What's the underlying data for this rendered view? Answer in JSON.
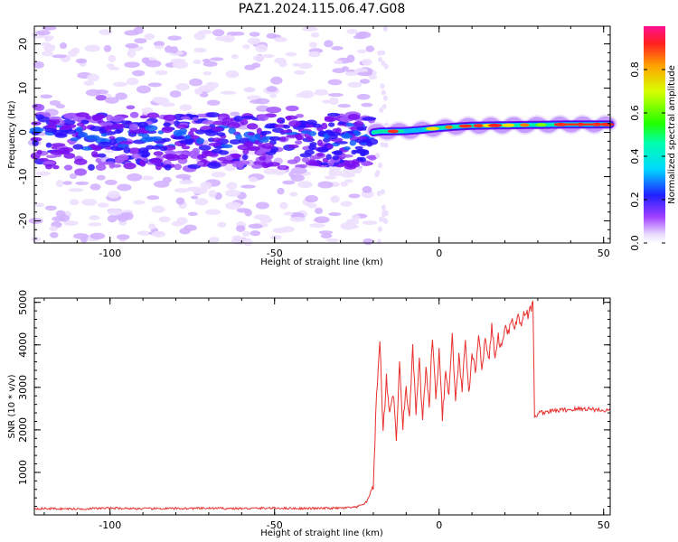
{
  "figure_title": "PAZ1.2024.115.06.47.G08",
  "chart_data": [
    {
      "type": "heatmap",
      "xlabel": "Height of straight line (km)",
      "ylabel": "Frequency (Hz)",
      "xlim": [
        -123,
        52
      ],
      "ylim": [
        -25,
        24
      ],
      "xticks": [
        -100,
        -50,
        0,
        50
      ],
      "yticks": [
        -20,
        -10,
        0,
        10,
        20
      ],
      "colorbar": {
        "label": "Normalized spectral amplitude",
        "range": [
          0.0,
          1.0
        ],
        "ticks": [
          0.0,
          0.2,
          0.4,
          0.6,
          0.8
        ],
        "tick_labels": [
          "0.0",
          "0.2",
          "0.4",
          "0.6",
          "0.8"
        ],
        "colormap": "hsv (white-violet-blue-cyan-green-yellow-red)"
      },
      "description_regions": [
        {
          "x_range": [
            -123,
            -20
          ],
          "pattern": "scattered speckle, strongest near 0 Hz (band -8 to 4 Hz), weak across -25 to 24 Hz"
        },
        {
          "x_range": [
            -20,
            52
          ],
          "pattern": "narrow coherent line rising from 0 Hz to ~1.8 Hz, amplitudes up to ~1.0"
        }
      ],
      "ridge": {
        "x": [
          -123,
          -20,
          -18,
          -10,
          -5,
          0,
          5,
          10,
          20,
          30,
          40,
          52
        ],
        "y": [
          0,
          0,
          0.2,
          0.3,
          0.6,
          1.0,
          1.3,
          1.5,
          1.6,
          1.7,
          1.8,
          1.8
        ]
      }
    },
    {
      "type": "line",
      "xlabel": "Height of straight line (km)",
      "ylabel": "SNR (10 * v/v)",
      "xlim": [
        -123,
        52
      ],
      "ylim": [
        0,
        5100
      ],
      "xticks": [
        -100,
        -50,
        0,
        50
      ],
      "yticks": [
        1000,
        2000,
        3000,
        4000,
        5000
      ],
      "series": [
        {
          "color": "#e8302e",
          "x": [
            -123,
            -110,
            -100,
            -90,
            -80,
            -70,
            -60,
            -50,
            -40,
            -30,
            -25,
            -22,
            -20,
            -19,
            -18,
            -17,
            -16,
            -15,
            -14,
            -13,
            -12,
            -11,
            -10,
            -9,
            -8,
            -7,
            -6,
            -5,
            -4,
            -3,
            -2,
            -1,
            0,
            1,
            2,
            3,
            4,
            5,
            6,
            7,
            8,
            9,
            10,
            11,
            12,
            13,
            14,
            15,
            16,
            17,
            18,
            19,
            20,
            21,
            22,
            23,
            24,
            25,
            26,
            27,
            28,
            28.5,
            29,
            30,
            35,
            40,
            45,
            50,
            52
          ],
          "y": [
            150,
            140,
            160,
            145,
            150,
            155,
            150,
            160,
            150,
            160,
            180,
            300,
            700,
            2800,
            4100,
            2000,
            3200,
            2400,
            2900,
            1800,
            3500,
            2100,
            3000,
            2300,
            3900,
            2400,
            3600,
            2200,
            3400,
            2600,
            4200,
            2700,
            3800,
            2300,
            3300,
            2800,
            4300,
            2600,
            3700,
            3000,
            4000,
            2800,
            3900,
            3300,
            4300,
            3500,
            4100,
            3600,
            4400,
            3700,
            4200,
            3900,
            4500,
            4300,
            4600,
            4400,
            4700,
            4500,
            4800,
            4700,
            4850,
            5100,
            2250,
            2400,
            2450,
            2480,
            2500,
            2460,
            2450
          ]
        }
      ]
    }
  ]
}
